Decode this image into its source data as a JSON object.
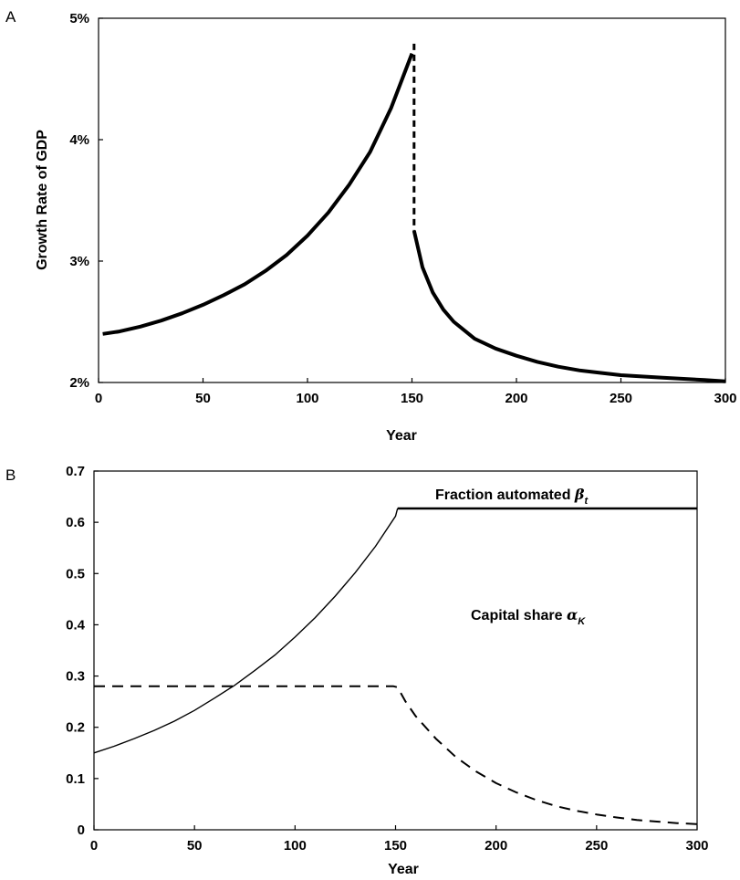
{
  "chart_data": [
    {
      "panel": "A",
      "type": "line",
      "xlabel": "Year",
      "ylabel": "Growth Rate of GDP",
      "xlim": [
        0,
        300
      ],
      "ylim": [
        0.02,
        0.05
      ],
      "x_ticks": [
        0,
        50,
        100,
        150,
        200,
        250,
        300
      ],
      "y_ticks": [
        0.02,
        0.03,
        0.04,
        0.05
      ],
      "x_tick_labels": [
        "0",
        "50",
        "100",
        "150",
        "200",
        "250",
        "300"
      ],
      "y_tick_labels": [
        "2%",
        "3%",
        "4%",
        "5%"
      ],
      "grid": false,
      "series": [
        {
          "style": "solid-thick",
          "x": [
            2,
            10,
            20,
            30,
            40,
            50,
            60,
            70,
            80,
            90,
            100,
            110,
            120,
            130,
            140,
            150
          ],
          "y": [
            0.024,
            0.0242,
            0.0246,
            0.0251,
            0.0257,
            0.0264,
            0.0272,
            0.0281,
            0.0292,
            0.0305,
            0.0321,
            0.034,
            0.0363,
            0.039,
            0.0426,
            0.0471
          ]
        },
        {
          "style": "dashed-thick",
          "x": [
            151,
            151
          ],
          "y": [
            0.0479,
            0.0325
          ]
        },
        {
          "style": "solid-thick",
          "x": [
            151,
            155,
            160,
            165,
            170,
            175,
            180,
            190,
            200,
            210,
            220,
            230,
            240,
            250,
            260,
            270,
            280,
            290,
            300
          ],
          "y": [
            0.0325,
            0.0295,
            0.0274,
            0.026,
            0.025,
            0.0243,
            0.0236,
            0.0228,
            0.0222,
            0.0217,
            0.0213,
            0.021,
            0.0208,
            0.0206,
            0.0205,
            0.0204,
            0.0203,
            0.0202,
            0.0201
          ]
        }
      ]
    },
    {
      "panel": "B",
      "type": "line",
      "xlabel": "Year",
      "ylabel": "",
      "xlim": [
        0,
        300
      ],
      "ylim": [
        0,
        0.7
      ],
      "x_ticks": [
        0,
        50,
        100,
        150,
        200,
        250,
        300
      ],
      "y_ticks": [
        0,
        0.1,
        0.2,
        0.3,
        0.4,
        0.5,
        0.6,
        0.7
      ],
      "x_tick_labels": [
        "0",
        "50",
        "100",
        "150",
        "200",
        "250",
        "300"
      ],
      "y_tick_labels": [
        "0",
        "0.1",
        "0.2",
        "0.3",
        "0.4",
        "0.5",
        "0.6",
        "0.7"
      ],
      "grid": false,
      "series": [
        {
          "name": "Fraction automated",
          "symbol": "β",
          "subscript": "t",
          "style": "solid",
          "x": [
            0,
            10,
            20,
            30,
            40,
            50,
            60,
            70,
            80,
            90,
            100,
            110,
            120,
            130,
            140,
            150,
            151,
            300
          ],
          "y": [
            0.15,
            0.163,
            0.178,
            0.194,
            0.212,
            0.233,
            0.257,
            0.282,
            0.311,
            0.341,
            0.376,
            0.414,
            0.456,
            0.502,
            0.553,
            0.612,
            0.627,
            0.627
          ],
          "thick_from_x": 151
        },
        {
          "name": "Capital share",
          "symbol": "α",
          "subscript": "K",
          "style": "dashed",
          "x": [
            0,
            149,
            151,
            155,
            160,
            170,
            180,
            190,
            200,
            210,
            220,
            230,
            240,
            250,
            260,
            270,
            280,
            290,
            300
          ],
          "y": [
            0.28,
            0.28,
            0.278,
            0.25,
            0.222,
            0.178,
            0.142,
            0.114,
            0.091,
            0.073,
            0.058,
            0.046,
            0.037,
            0.03,
            0.024,
            0.019,
            0.016,
            0.013,
            0.011
          ]
        }
      ],
      "annotations": [
        {
          "text": "Fraction automated ",
          "symbol": "β",
          "subscript": "t",
          "x": 200,
          "y": 0.645
        },
        {
          "text": "Capital share ",
          "symbol": "α",
          "subscript": "K",
          "x": 213,
          "y": 0.27
        }
      ]
    }
  ]
}
